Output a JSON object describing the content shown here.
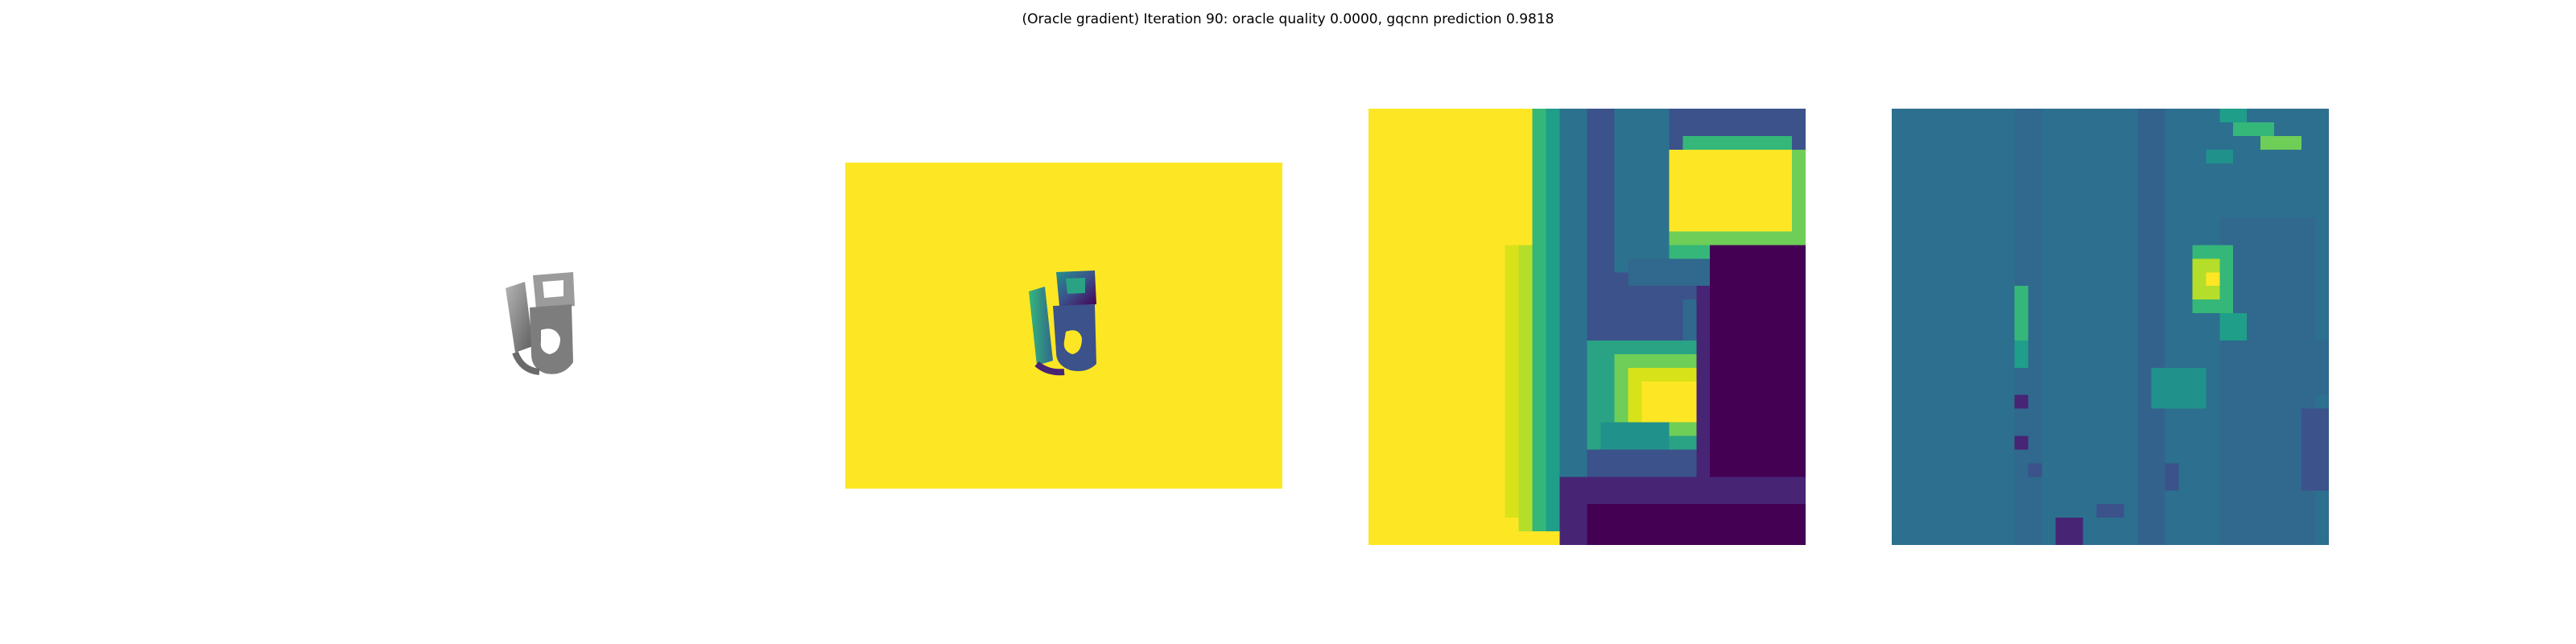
{
  "figure": {
    "title": "(Oracle gradient) Iteration 90: oracle quality 0.0000, gqcnn prediction 0.9818"
  },
  "colors": {
    "background": "#ffffff",
    "viridis_yellow": "#fde725",
    "viridis_teal": "#2c6f8e",
    "viridis_green": "#35b779",
    "viridis_purple": "#440154",
    "object_gray": "#8a8a8a"
  },
  "panels": [
    {
      "name": "object-render",
      "colormap": "gray"
    },
    {
      "name": "depth-image",
      "colormap": "viridis"
    },
    {
      "name": "depth-crop",
      "colormap": "viridis"
    },
    {
      "name": "gradient-map",
      "colormap": "viridis"
    }
  ]
}
